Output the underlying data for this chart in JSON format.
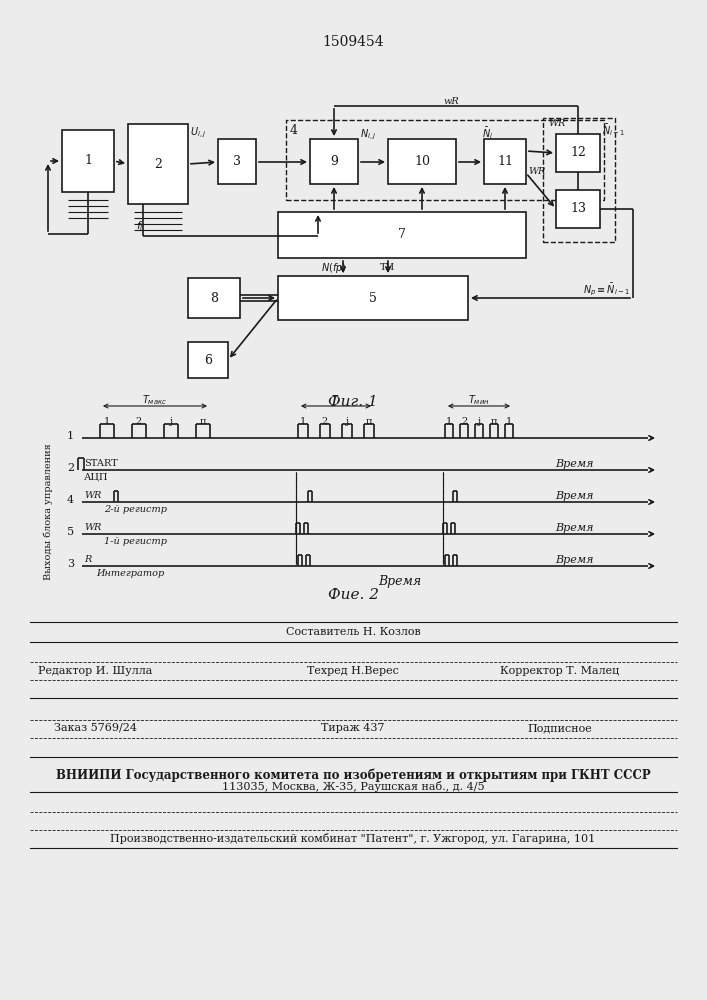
{
  "patent_number": "1509454",
  "fig1_caption": "Фиг. 1",
  "fig2_caption": "Фие. 2",
  "bg_color": "#ececec",
  "line_color": "#1a1a1a",
  "footer": {
    "composer": "Составитель Н. Козлов",
    "editor": "Редактор И. Шулла",
    "techred": "Техред Н.Верес",
    "corrector": "Корректор Т. Малец",
    "order": "Заказ 5769/24",
    "tirage": "Тираж 437",
    "podpisnoe": "Подписное",
    "vniip": "ВНИИПИ Государственного комитета по изобретениям и открытиям при ГКНТ СССР",
    "address": "113035, Москва, Ж-35, Раушская наб., д. 4/5",
    "factory": "Производственно-издательский комбинат \"Патент\", г. Ужгород, ул. Гагарина, 101"
  }
}
